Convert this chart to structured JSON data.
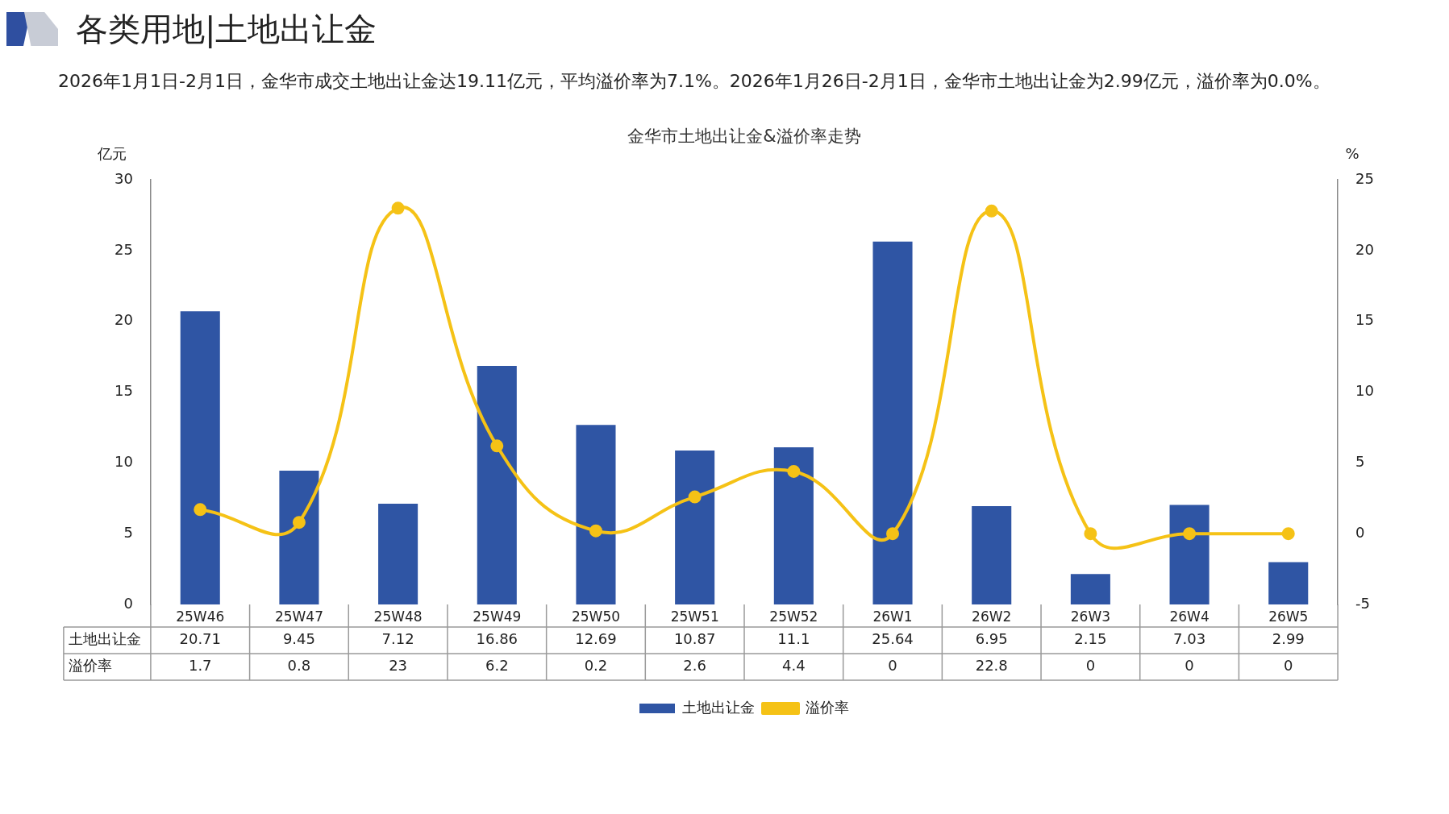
{
  "chart_data": {
    "type": "bar",
    "title": "金华市土地出让金&溢价率走势",
    "annotations": [
      "各类用地|土地出让金",
      "2026年1月1日-2月1日，金华市成交土地出让金达19.11亿元，平均溢价率为7.1%。2026年1月26日-2月1日，金华市土地出让金为2.99亿元，溢价率为0.0%。"
    ],
    "ylabel": "亿元",
    "y2label": "%",
    "categories": [
      "25W46",
      "25W47",
      "25W48",
      "25W49",
      "25W50",
      "25W51",
      "25W52",
      "26W1",
      "26W2",
      "26W3",
      "26W4",
      "26W5"
    ],
    "series": [
      {
        "name": "土地出让金",
        "color": "#2f55a4",
        "values": [
          20.71,
          9.45,
          7.12,
          16.86,
          12.69,
          10.87,
          11.1,
          25.64,
          6.95,
          2.15,
          7.03,
          2.99
        ]
      },
      {
        "name": "溢价率",
        "type": "line",
        "axis": "y2",
        "color": "#f5c216",
        "values": [
          1.7,
          0.8,
          23,
          6.2,
          0.2,
          2.6,
          4.4,
          0,
          22.8,
          0,
          0,
          0
        ]
      }
    ],
    "ylim": [
      0,
      30
    ],
    "yticks": [
      0,
      5,
      10,
      15,
      20,
      25,
      30
    ],
    "y2lim": [
      -5,
      25
    ],
    "y2ticks": [
      -5,
      0,
      5,
      10,
      15,
      20,
      25
    ],
    "grid": false,
    "legend": "bottom",
    "marker": "circle",
    "data_labels": true
  }
}
